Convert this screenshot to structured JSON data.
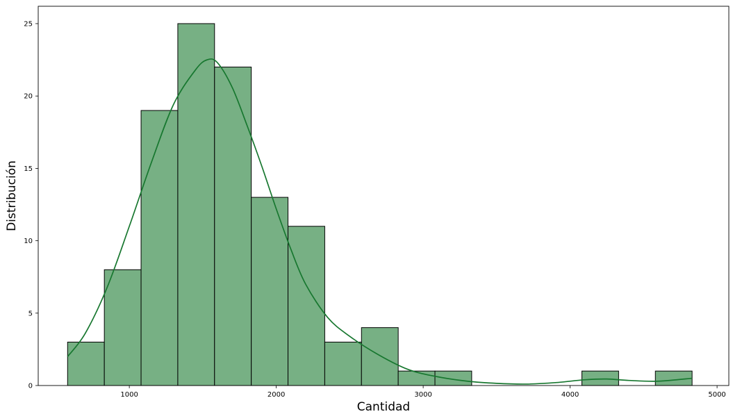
{
  "chart_data": {
    "type": "bar",
    "subtype": "histogram_with_kde",
    "title": "",
    "xlabel": "Cantidad",
    "ylabel": "Distribución",
    "xlim": [
      380,
      5080
    ],
    "ylim": [
      0,
      26.2
    ],
    "xticks": [
      1000,
      2000,
      3000,
      4000,
      5000
    ],
    "yticks": [
      0,
      5,
      10,
      15,
      20,
      25
    ],
    "grid": false,
    "colors": {
      "bar_fill": "#77b084",
      "bar_edge": "#000000",
      "kde_line": "#17772f"
    },
    "bins": [
      {
        "x0": 580,
        "x1": 830,
        "count": 3
      },
      {
        "x0": 830,
        "x1": 1080,
        "count": 8
      },
      {
        "x0": 1080,
        "x1": 1330,
        "count": 19
      },
      {
        "x0": 1330,
        "x1": 1580,
        "count": 25
      },
      {
        "x0": 1580,
        "x1": 1830,
        "count": 22
      },
      {
        "x0": 1830,
        "x1": 2080,
        "count": 13
      },
      {
        "x0": 2080,
        "x1": 2330,
        "count": 11
      },
      {
        "x0": 2330,
        "x1": 2580,
        "count": 3
      },
      {
        "x0": 2580,
        "x1": 2830,
        "count": 4
      },
      {
        "x0": 2830,
        "x1": 3080,
        "count": 1
      },
      {
        "x0": 3080,
        "x1": 3330,
        "count": 1
      },
      {
        "x0": 3330,
        "x1": 3580,
        "count": 0
      },
      {
        "x0": 3580,
        "x1": 3830,
        "count": 0
      },
      {
        "x0": 3830,
        "x1": 4080,
        "count": 0
      },
      {
        "x0": 4080,
        "x1": 4330,
        "count": 1
      },
      {
        "x0": 4330,
        "x1": 4580,
        "count": 0
      },
      {
        "x0": 4580,
        "x1": 4830,
        "count": 1
      }
    ],
    "kde": {
      "x": [
        580,
        700,
        850,
        1000,
        1150,
        1300,
        1450,
        1530,
        1600,
        1700,
        1800,
        1900,
        2000,
        2100,
        2200,
        2350,
        2500,
        2700,
        2900,
        3100,
        3300,
        3500,
        3700,
        3900,
        4100,
        4250,
        4400,
        4600,
        4830
      ],
      "y": [
        2.0,
        3.6,
        6.8,
        11.0,
        15.4,
        19.4,
        21.8,
        22.5,
        22.3,
        20.6,
        18.0,
        15.2,
        12.2,
        9.4,
        7.0,
        4.7,
        3.4,
        2.1,
        1.1,
        0.6,
        0.3,
        0.15,
        0.1,
        0.2,
        0.4,
        0.45,
        0.35,
        0.3,
        0.5
      ]
    }
  }
}
